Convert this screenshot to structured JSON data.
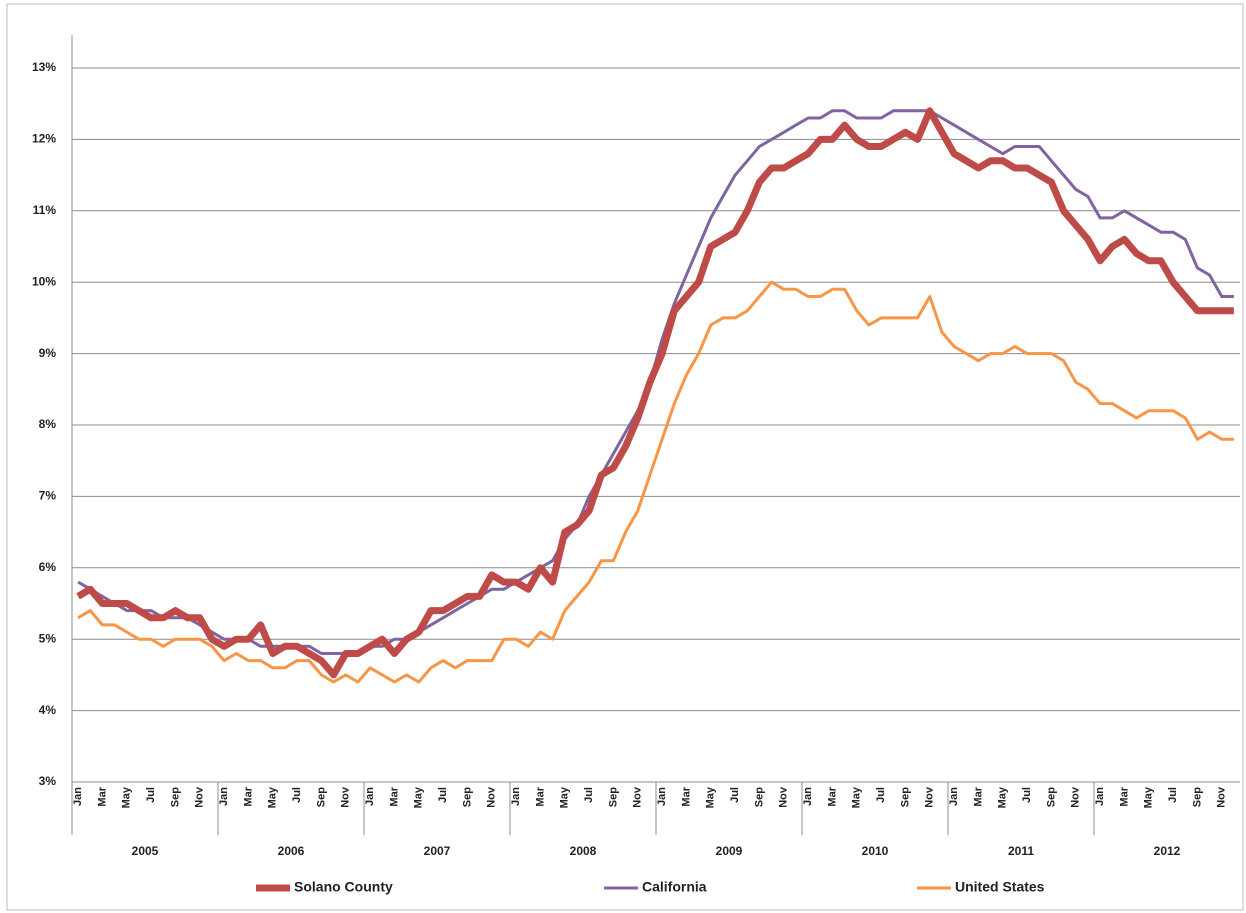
{
  "chart_data": {
    "type": "line",
    "categories": [
      "Jan",
      null,
      "Mar",
      null,
      "May",
      null,
      "Jul",
      null,
      "Sep",
      null,
      "Nov",
      null,
      "Jan",
      null,
      "Mar",
      null,
      "May",
      null,
      "Jul",
      null,
      "Sep",
      null,
      "Nov",
      null,
      "Jan",
      null,
      "Mar",
      null,
      "May",
      null,
      "Jul",
      null,
      "Sep",
      null,
      "Nov",
      null,
      "Jan",
      null,
      "Mar",
      null,
      "May",
      null,
      "Jul",
      null,
      "Sep",
      null,
      "Nov",
      null,
      "Jan",
      null,
      "Mar",
      null,
      "May",
      null,
      "Jul",
      null,
      "Sep",
      null,
      "Nov",
      null,
      "Jan",
      null,
      "Mar",
      null,
      "May",
      null,
      "Jul",
      null,
      "Sep",
      null,
      "Nov",
      null,
      "Jan",
      null,
      "Mar",
      null,
      "May",
      null,
      "Jul",
      null,
      "Sep",
      null,
      "Nov",
      null,
      "Jan",
      null,
      "Mar",
      null,
      "May",
      null,
      "Jul",
      null,
      "Sep",
      null,
      "Nov",
      null
    ],
    "years": [
      "2005",
      "2006",
      "2007",
      "2008",
      "2009",
      "2010",
      "2011",
      "2012"
    ],
    "series": [
      {
        "name": "Solano County",
        "color": "#be4b48",
        "values": [
          5.6,
          5.7,
          5.5,
          5.5,
          5.5,
          5.4,
          5.3,
          5.3,
          5.4,
          5.3,
          5.3,
          5.0,
          4.9,
          5.0,
          5.0,
          5.2,
          4.8,
          4.9,
          4.9,
          4.8,
          4.7,
          4.5,
          4.8,
          4.8,
          4.9,
          5.0,
          4.8,
          5.0,
          5.1,
          5.4,
          5.4,
          5.5,
          5.6,
          5.6,
          5.9,
          5.8,
          5.8,
          5.7,
          6.0,
          5.8,
          6.5,
          6.6,
          6.8,
          7.3,
          7.4,
          7.7,
          8.1,
          8.6,
          9.0,
          9.6,
          9.8,
          10.0,
          10.5,
          10.6,
          10.7,
          11.0,
          11.4,
          11.6,
          11.6,
          11.7,
          11.8,
          12.0,
          12.0,
          12.2,
          12.0,
          11.9,
          11.9,
          12.0,
          12.1,
          12.0,
          12.4,
          12.1,
          11.8,
          11.7,
          11.6,
          11.7,
          11.7,
          11.6,
          11.6,
          11.5,
          11.4,
          11.0,
          10.8,
          10.6,
          10.3,
          10.5,
          10.6,
          10.4,
          10.3,
          10.3,
          10.0,
          9.8,
          9.6,
          9.6,
          9.6,
          9.6
        ]
      },
      {
        "name": "California",
        "color": "#8064a2",
        "values": [
          5.8,
          5.7,
          5.6,
          5.5,
          5.4,
          5.4,
          5.4,
          5.3,
          5.3,
          5.3,
          5.2,
          5.1,
          5.0,
          5.0,
          5.0,
          4.9,
          4.9,
          4.9,
          4.9,
          4.9,
          4.8,
          4.8,
          4.8,
          4.8,
          4.9,
          4.9,
          5.0,
          5.0,
          5.1,
          5.2,
          5.3,
          5.4,
          5.5,
          5.6,
          5.7,
          5.7,
          5.8,
          5.9,
          6.0,
          6.1,
          6.4,
          6.6,
          7.0,
          7.3,
          7.6,
          7.9,
          8.2,
          8.6,
          9.2,
          9.7,
          10.1,
          10.5,
          10.9,
          11.2,
          11.5,
          11.7,
          11.9,
          12.0,
          12.1,
          12.2,
          12.3,
          12.3,
          12.4,
          12.4,
          12.3,
          12.3,
          12.3,
          12.4,
          12.4,
          12.4,
          12.4,
          12.3,
          12.2,
          12.1,
          12.0,
          11.9,
          11.8,
          11.9,
          11.9,
          11.9,
          11.7,
          11.5,
          11.3,
          11.2,
          10.9,
          10.9,
          11.0,
          10.9,
          10.8,
          10.7,
          10.7,
          10.6,
          10.2,
          10.1,
          9.8,
          9.8
        ]
      },
      {
        "name": "United States",
        "color": "#f79646",
        "values": [
          5.3,
          5.4,
          5.2,
          5.2,
          5.1,
          5.0,
          5.0,
          4.9,
          5.0,
          5.0,
          5.0,
          4.9,
          4.7,
          4.8,
          4.7,
          4.7,
          4.6,
          4.6,
          4.7,
          4.7,
          4.5,
          4.4,
          4.5,
          4.4,
          4.6,
          4.5,
          4.4,
          4.5,
          4.4,
          4.6,
          4.7,
          4.6,
          4.7,
          4.7,
          4.7,
          5.0,
          5.0,
          4.9,
          5.1,
          5.0,
          5.4,
          5.6,
          5.8,
          6.1,
          6.1,
          6.5,
          6.8,
          7.3,
          7.8,
          8.3,
          8.7,
          9.0,
          9.4,
          9.5,
          9.5,
          9.6,
          9.8,
          10.0,
          9.9,
          9.9,
          9.8,
          9.8,
          9.9,
          9.9,
          9.6,
          9.4,
          9.5,
          9.5,
          9.5,
          9.5,
          9.8,
          9.3,
          9.1,
          9.0,
          8.9,
          9.0,
          9.0,
          9.1,
          9.0,
          9.0,
          9.0,
          8.9,
          8.6,
          8.5,
          8.3,
          8.3,
          8.2,
          8.1,
          8.2,
          8.2,
          8.2,
          8.1,
          7.8,
          7.9,
          7.8,
          7.8
        ]
      }
    ],
    "ylim": [
      3,
      13
    ],
    "yticks": [
      {
        "value": 3,
        "label": "3%"
      },
      {
        "value": 4,
        "label": "4%"
      },
      {
        "value": 5,
        "label": "5%"
      },
      {
        "value": 6,
        "label": "6%"
      },
      {
        "value": 7,
        "label": "7%"
      },
      {
        "value": 8,
        "label": "8%"
      },
      {
        "value": 9,
        "label": "9%"
      },
      {
        "value": 10,
        "label": "10%"
      },
      {
        "value": 11,
        "label": "11%"
      },
      {
        "value": 12,
        "label": "12%"
      },
      {
        "value": 13,
        "label": "13%"
      }
    ],
    "grid": true,
    "legend": "bottom"
  }
}
